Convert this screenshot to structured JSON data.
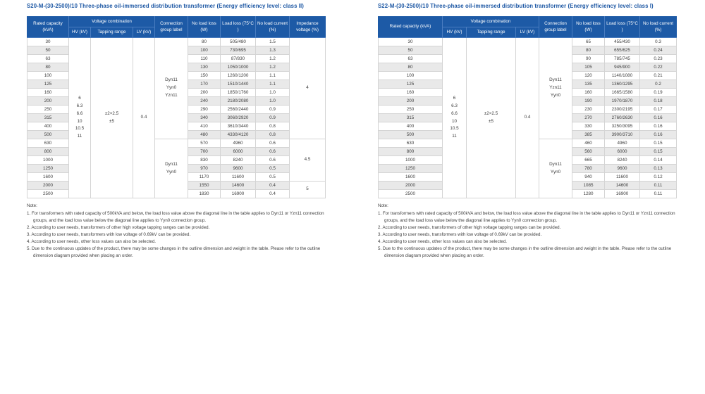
{
  "colors": {
    "header_bg": "#1d5aa6",
    "header_border": "#4a7dc0",
    "title": "#1b56a3",
    "row_alt": "#e9e9e9",
    "border": "#d4d4d4",
    "text": "#3c3c3c",
    "page_bg": "#ffffff"
  },
  "headers": {
    "rated_capacity": "Rated capacity (kVA)",
    "voltage_combination": "Voltage combination",
    "hv": "HV (kV)",
    "tapping_range": "Tapping range",
    "lv": "LV (kV)",
    "connection_group": "Connection group label",
    "no_load_loss": "No load loss (W)",
    "load_loss": "Load loss (75°C )",
    "no_load_current": "No load current (%)",
    "impedance_voltage": "Impedance voltage (%)"
  },
  "left_table": {
    "title": "S20-M-(30-2500)/10 Three-phase oil-immersed distribution transformer (Energy efficiency level: class II)",
    "hv": "6\n6.3\n6.6\n10\n10.5\n11",
    "tapping": "±2×2.5\n±5",
    "lv": "0.4",
    "connection_groups": [
      {
        "label": "Dyn11\nYyn0\nYzn11",
        "span": 12
      },
      {
        "label": "Dyn11\nYyn0",
        "span": 7
      }
    ],
    "impedance_groups": [
      {
        "value": "4",
        "span": 12
      },
      {
        "value": "4.5",
        "span": 5
      },
      {
        "value": "5",
        "span": 2
      }
    ],
    "rows": [
      [
        "30",
        "80",
        "505/480",
        "1.5"
      ],
      [
        "50",
        "100",
        "730/695",
        "1.3"
      ],
      [
        "63",
        "110",
        "87/830",
        "1.2"
      ],
      [
        "80",
        "130",
        "1050/1000",
        "1.2"
      ],
      [
        "100",
        "150",
        "1260/1200",
        "1.1"
      ],
      [
        "125",
        "170",
        "1510/1440",
        "1.1"
      ],
      [
        "160",
        "200",
        "1850/1760",
        "1.0"
      ],
      [
        "200",
        "240",
        "2180/2080",
        "1.0"
      ],
      [
        "250",
        "290",
        "2560/2440",
        "0.9"
      ],
      [
        "315",
        "340",
        "3060/2920",
        "0.9"
      ],
      [
        "400",
        "410",
        "3610/3440",
        "0.8"
      ],
      [
        "500",
        "480",
        "4330/4120",
        "0.8"
      ],
      [
        "630",
        "570",
        "4960",
        "0.6"
      ],
      [
        "800",
        "700",
        "6000",
        "0.6"
      ],
      [
        "1000",
        "830",
        "8240",
        "0.6"
      ],
      [
        "1250",
        "970",
        "9600",
        "0.5"
      ],
      [
        "1600",
        "1170",
        "11600",
        "0.5"
      ],
      [
        "2000",
        "1550",
        "14600",
        "0.4"
      ],
      [
        "2500",
        "1830",
        "16900",
        "0.4"
      ]
    ]
  },
  "right_table": {
    "title": "S22-M-(30-2500)/10 Three-phase oil-immersed distribution transformer (Energy efficiency level: class I)",
    "hv": "6\n6.3\n6.6\n10\n10.5\n11",
    "tapping": "±2×2.5\n±5",
    "lv": "0.4",
    "connection_groups": [
      {
        "label": "Dyn11\nYzn11\nYyn0",
        "span": 12
      },
      {
        "label": "Dyn11\nYyn0",
        "span": 7
      }
    ],
    "rows": [
      [
        "30",
        "65",
        "455/430",
        "0.3"
      ],
      [
        "50",
        "80",
        "655/625",
        "0.24"
      ],
      [
        "63",
        "90",
        "785/745",
        "0.23"
      ],
      [
        "80",
        "105",
        "945/900",
        "0.22"
      ],
      [
        "100",
        "120",
        "1140/1080",
        "0.21"
      ],
      [
        "125",
        "135",
        "1360/1295",
        "0.2"
      ],
      [
        "160",
        "160",
        "1665/1580",
        "0.19"
      ],
      [
        "200",
        "190",
        "1970/1870",
        "0.18"
      ],
      [
        "250",
        "230",
        "2300/2195",
        "0.17"
      ],
      [
        "315",
        "270",
        "2760/2630",
        "0.16"
      ],
      [
        "400",
        "330",
        "3250/3095",
        "0.16"
      ],
      [
        "500",
        "385",
        "3900/3710",
        "0.16"
      ],
      [
        "630",
        "460",
        "4960",
        "0.15"
      ],
      [
        "800",
        "560",
        "6000",
        "0.15"
      ],
      [
        "1000",
        "665",
        "8240",
        "0.14"
      ],
      [
        "1250",
        "780",
        "9600",
        "0.13"
      ],
      [
        "1600",
        "940",
        "11600",
        "0.12"
      ],
      [
        "2000",
        "1085",
        "14600",
        "0.11"
      ],
      [
        "2500",
        "1280",
        "16900",
        "0.11"
      ]
    ]
  },
  "notes": {
    "heading": "Note:",
    "items": [
      "1. For transformers with rated capacity of 500kVA and below, the load loss value above the diagonal line in the table applies to Dyn11 or Yzn11 connection groups, and the load loss value below the diagonal line applies to Yyn0 connection group.",
      "2. According to user needs, transformers of other high voltage tapping ranges can be provided.",
      "3. According to user needs, transformers with low voltage of 0.69kV can be provided.",
      "4. According to user needs, other loss values can also be selected.",
      "5. Due to the continuous updates of the product, there may be some changes in the outline dimension and weight in the table. Please refer to the outline dimension diagram provided when placing an order."
    ]
  }
}
